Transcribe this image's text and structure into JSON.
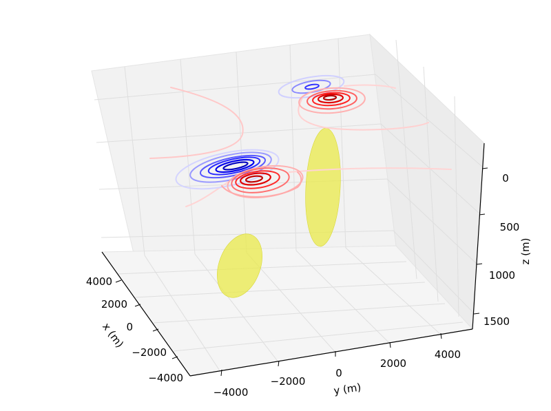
{
  "chart_data": {
    "type": "3d-contour",
    "title": "",
    "axes": {
      "x": {
        "label": "x (m)",
        "ticks": [
          "4000",
          "2000",
          "0",
          "−2000",
          "−4000"
        ]
      },
      "y": {
        "label": "y (m)",
        "ticks": [
          "−4000",
          "−2000",
          "0",
          "2000",
          "4000"
        ]
      },
      "z": {
        "label": "z (m)",
        "ticks": [
          "0",
          "500",
          "1000",
          "1500"
        ],
        "inverted": true
      }
    },
    "grid": true,
    "series": [
      {
        "kind": "contour-negative",
        "color": "#0000ff"
      },
      {
        "kind": "contour-positive",
        "color": "#ff0000"
      },
      {
        "kind": "ellipsoid",
        "color": "#e8e84a"
      }
    ]
  }
}
